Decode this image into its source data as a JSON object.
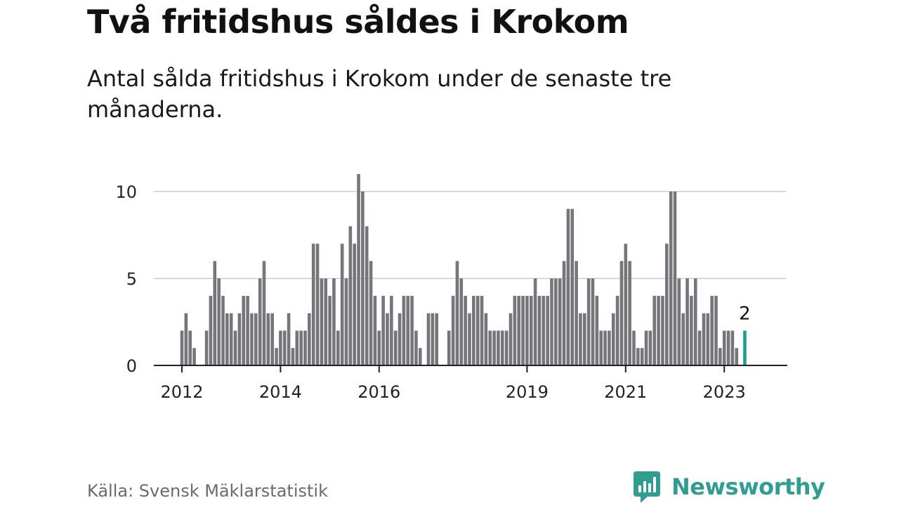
{
  "title": "Två fritidshus såldes i Krokom",
  "subtitle": "Antal sålda fritidshus i Krokom under de senaste tre månaderna.",
  "source": "Källa: Svensk Mäklarstatistik",
  "brand": {
    "name": "Newsworthy",
    "logo_icon": "bar-chart-speech-bubble-icon",
    "color": "#2f9e91"
  },
  "chart_data": {
    "type": "bar",
    "bar_color": "#76757a",
    "highlight_color": "#1a9e94",
    "x_start": "2012-01",
    "y_ticks": [
      0,
      5,
      10
    ],
    "y_tick_labels": [
      "0",
      "5",
      "10"
    ],
    "x_tick_labels": [
      {
        "label": "2012",
        "month": "2012-01"
      },
      {
        "label": "2014",
        "month": "2014-01"
      },
      {
        "label": "2016",
        "month": "2016-01"
      },
      {
        "label": "2019",
        "month": "2019-01"
      },
      {
        "label": "2021",
        "month": "2021-01"
      },
      {
        "label": "2023",
        "month": "2023-01"
      }
    ],
    "ylim": [
      0,
      11
    ],
    "values": [
      2,
      3,
      2,
      1,
      0,
      0,
      2,
      4,
      6,
      5,
      4,
      3,
      3,
      2,
      3,
      4,
      4,
      3,
      3,
      5,
      6,
      3,
      3,
      1,
      2,
      2,
      3,
      1,
      2,
      2,
      2,
      3,
      7,
      7,
      5,
      5,
      4,
      5,
      2,
      7,
      5,
      8,
      7,
      11,
      10,
      8,
      6,
      4,
      2,
      4,
      3,
      4,
      2,
      3,
      4,
      4,
      4,
      2,
      1,
      0,
      3,
      3,
      3,
      0,
      0,
      2,
      4,
      6,
      5,
      4,
      3,
      4,
      4,
      4,
      3,
      2,
      2,
      2,
      2,
      2,
      3,
      4,
      4,
      4,
      4,
      4,
      5,
      4,
      4,
      4,
      5,
      5,
      5,
      6,
      9,
      9,
      6,
      3,
      3,
      5,
      5,
      4,
      2,
      2,
      2,
      3,
      4,
      6,
      7,
      6,
      2,
      1,
      1,
      2,
      2,
      4,
      4,
      4,
      7,
      10,
      10,
      5,
      3,
      5,
      4,
      5,
      2,
      3,
      3,
      4,
      4,
      1,
      2,
      2,
      2,
      1,
      0,
      2
    ],
    "highlight_index": 137,
    "highlight_label": "2"
  }
}
